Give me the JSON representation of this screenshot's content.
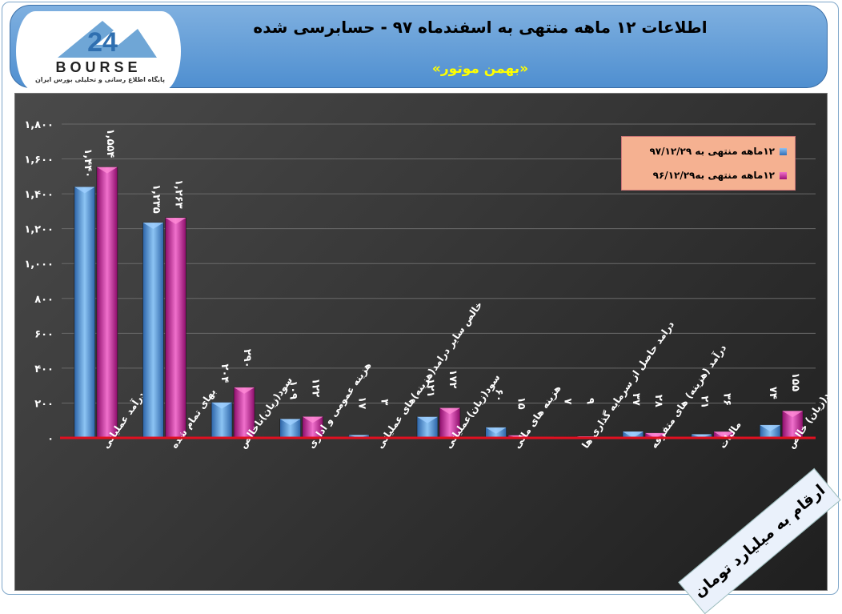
{
  "header": {
    "logo_text": "BOURSE",
    "logo_numeral": "24",
    "logo_tagline": "پایگاه اطلاع رسانی و تحلیلی بورس ایران",
    "title": "اطلاعات ۱۲ ماهه منتهی به اسفندماه ۹۷ - حسابرسی شده",
    "subtitle": "«بهمن موتور»"
  },
  "unit_note": "ارقام به میلیارد تومان",
  "colors": {
    "series1": "#4f8fd9",
    "series2": "#d42aa0",
    "baseline": "#e01020",
    "title": "#000000",
    "subtitle": "#ffff00"
  },
  "chart_data": {
    "type": "bar",
    "categories": [
      "درآمد عملیاتی",
      "بهای تمام شده",
      "سود(زیان)ناخالص",
      "هزینه عمومی و اداری",
      "خالص سایر درامد(هزینه)های عملیاتی",
      "سود(زیان)عملیاتی",
      "هزینه های مالی",
      "درامد حاصل از سرمایه گذاری ها",
      "درآمد (هزینه) های متفرقه",
      "مالیات",
      "سود(زیان) خالص"
    ],
    "series": [
      {
        "name": "۱۲ماهه منتهی به ۹۷/۱۲/۲۹",
        "values": [
          1440,
          1235,
          204,
          109,
          17,
          121,
          60,
          7,
          37,
          21,
          74
        ],
        "labels": [
          "۱,۴۴۰",
          "۱,۲۳۵",
          "۲۰۴",
          "۱۰۹",
          "۱۷",
          "۱۲۱",
          "۶۰",
          "۷",
          "۳۷",
          "۲۱",
          "۷۴"
        ]
      },
      {
        "name": "۱۲ماهه منتهی به۹۶/۱۲/۲۹",
        "values": [
          1554,
          1263,
          290,
          122,
          3,
          172,
          15,
          9,
          28,
          36,
          155
        ],
        "labels": [
          "۱,۵۵۴",
          "۱,۲۶۳",
          "۲۹۰",
          "۱۲۲",
          "۳",
          "۱۷۲",
          "۱۵",
          "۹",
          "۲۸",
          "۳۶",
          "۱۵۵"
        ]
      }
    ],
    "ylim": [
      0,
      1800
    ],
    "yticks": [
      0,
      200,
      400,
      600,
      800,
      1000,
      1200,
      1400,
      1600,
      1800
    ],
    "ytick_labels": [
      "۰",
      "۲۰۰",
      "۴۰۰",
      "۶۰۰",
      "۸۰۰",
      "۱,۰۰۰",
      "۱,۲۰۰",
      "۱,۴۰۰",
      "۱,۶۰۰",
      "۱,۸۰۰"
    ],
    "grid": true,
    "legend": "top-right",
    "xlabel": "",
    "ylabel": ""
  }
}
